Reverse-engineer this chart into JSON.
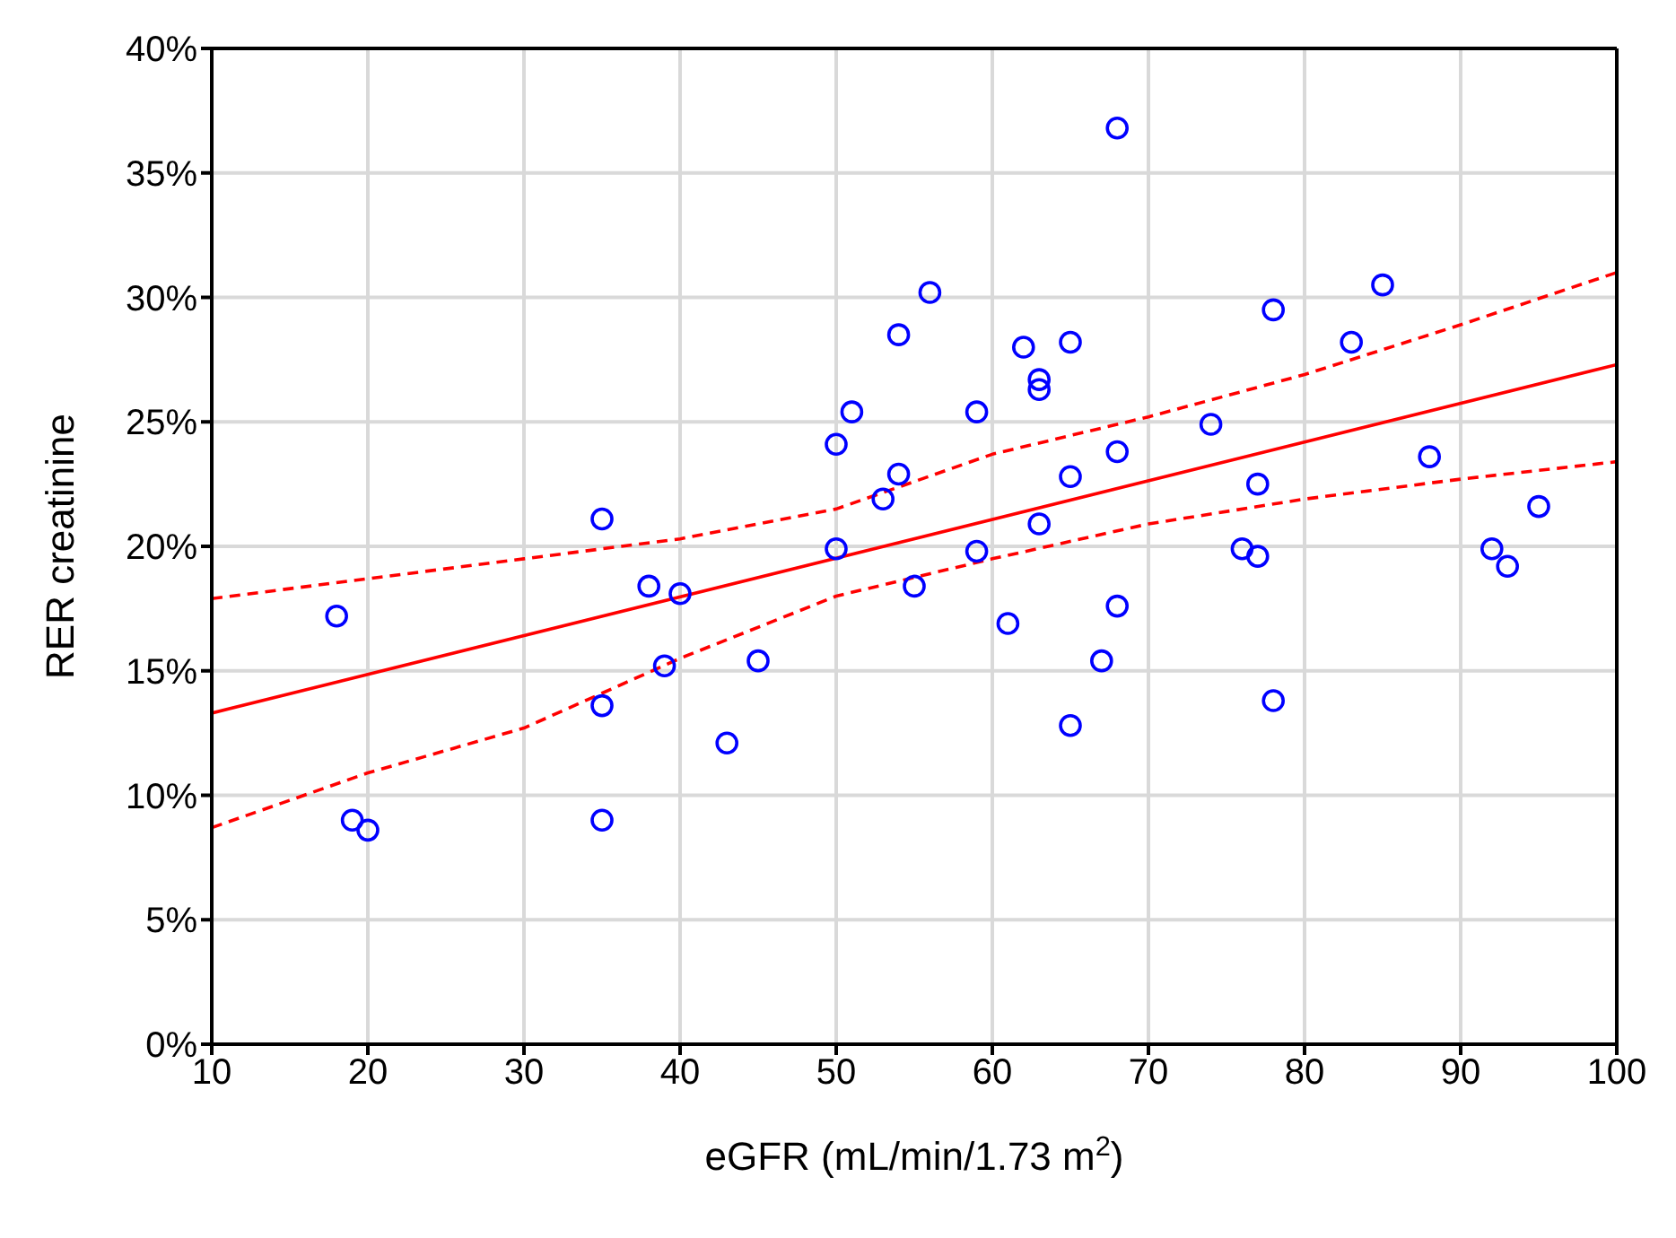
{
  "chart_data": {
    "type": "scatter",
    "xlabel": "eGFR (mL/min/1.73 m$^{2}$)",
    "ylabel": "RER creatinine",
    "xlim": [
      10,
      100
    ],
    "xticks": [
      10,
      20,
      30,
      40,
      50,
      60,
      70,
      80,
      90,
      100
    ],
    "ylim": [
      0,
      40
    ],
    "yticks": [
      {
        "value": 0,
        "label": "0%"
      },
      {
        "value": 5,
        "label": "5%"
      },
      {
        "value": 10,
        "label": "10%"
      },
      {
        "value": 15,
        "label": "15%"
      },
      {
        "value": 20,
        "label": "20%"
      },
      {
        "value": 25,
        "label": "25%"
      },
      {
        "value": 30,
        "label": "30%"
      },
      {
        "value": 35,
        "label": "35%"
      },
      {
        "value": 40,
        "label": "40%"
      }
    ],
    "grid": true,
    "series": [
      {
        "marker": "circle",
        "color": "#0000ff",
        "x": [
          18,
          19,
          20,
          35,
          35,
          35,
          38,
          40,
          39,
          43,
          45,
          50,
          50,
          51,
          53,
          54,
          54,
          55,
          56,
          59,
          59,
          61,
          62,
          63,
          63,
          63,
          65,
          65,
          65,
          67,
          68,
          68,
          68,
          74,
          76,
          77,
          77,
          78,
          78,
          83,
          85,
          88,
          92,
          93,
          95
        ],
        "values": [
          17.2,
          9.0,
          8.6,
          21.1,
          13.6,
          9.0,
          18.4,
          18.1,
          15.2,
          12.1,
          15.4,
          24.1,
          19.9,
          25.4,
          21.9,
          28.5,
          22.9,
          18.4,
          30.2,
          25.4,
          19.8,
          16.9,
          28.0,
          26.7,
          26.3,
          20.9,
          28.2,
          22.8,
          12.8,
          15.4,
          36.8,
          23.8,
          17.6,
          24.9,
          19.9,
          19.6,
          22.5,
          29.5,
          13.8,
          28.2,
          30.5,
          23.6,
          19.9,
          19.2,
          21.6
        ]
      },
      {
        "type": "line",
        "color": "#ff0000",
        "line_style": "solid",
        "x": [
          10,
          100
        ],
        "values": [
          13.3,
          27.3
        ]
      },
      {
        "type": "line",
        "color": "#ff0000",
        "line_style": "dashed",
        "x": [
          10,
          20,
          30,
          40,
          50,
          60,
          70,
          80,
          90,
          100
        ],
        "values": [
          17.9,
          18.7,
          19.5,
          20.3,
          21.5,
          23.7,
          25.2,
          26.9,
          28.9,
          31.0
        ]
      },
      {
        "type": "line",
        "color": "#ff0000",
        "line_style": "dashed",
        "x": [
          10,
          20,
          30,
          40,
          50,
          60,
          70,
          80,
          90,
          100
        ],
        "values": [
          8.7,
          10.9,
          12.7,
          15.5,
          18.0,
          19.5,
          20.9,
          21.9,
          22.7,
          23.4
        ]
      }
    ]
  }
}
